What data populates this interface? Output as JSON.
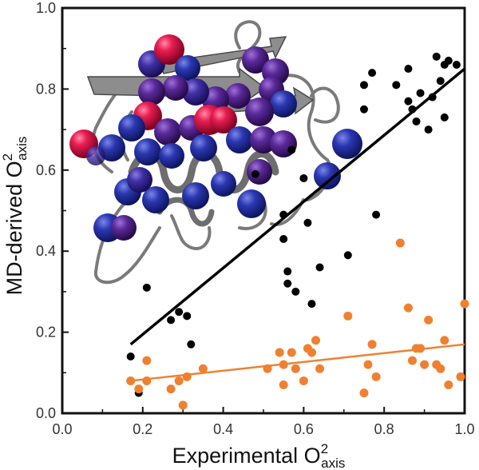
{
  "chart_data": {
    "type": "scatter",
    "xlabel": {
      "main": "Experimental O",
      "sup": "2",
      "sub": "axis"
    },
    "ylabel": {
      "main": "MD-derived O",
      "sup": "2",
      "sub": "axis"
    },
    "xlim": [
      0,
      1.0
    ],
    "ylim": [
      0,
      1.0
    ],
    "x_ticks": [
      "0.0",
      "0.2",
      "0.4",
      "0.6",
      "0.8",
      "1.0"
    ],
    "y_ticks": [
      "0.0",
      "0.2",
      "0.4",
      "0.6",
      "0.8",
      "1.0"
    ],
    "grid": false,
    "series": [
      {
        "color": "#000000",
        "points": [
          [
            0.17,
            0.14
          ],
          [
            0.19,
            0.05
          ],
          [
            0.21,
            0.31
          ],
          [
            0.27,
            0.23
          ],
          [
            0.29,
            0.25
          ],
          [
            0.31,
            0.24
          ],
          [
            0.32,
            0.17
          ],
          [
            0.48,
            0.59
          ],
          [
            0.55,
            0.49
          ],
          [
            0.55,
            0.43
          ],
          [
            0.56,
            0.35
          ],
          [
            0.56,
            0.32
          ],
          [
            0.57,
            0.65
          ],
          [
            0.58,
            0.3
          ],
          [
            0.6,
            0.58
          ],
          [
            0.61,
            0.47
          ],
          [
            0.62,
            0.27
          ],
          [
            0.64,
            0.36
          ],
          [
            0.71,
            0.39
          ],
          [
            0.75,
            0.81
          ],
          [
            0.75,
            0.75
          ],
          [
            0.77,
            0.84
          ],
          [
            0.78,
            0.49
          ],
          [
            0.83,
            0.81
          ],
          [
            0.86,
            0.85
          ],
          [
            0.86,
            0.77
          ],
          [
            0.87,
            0.75
          ],
          [
            0.88,
            0.72
          ],
          [
            0.89,
            0.79
          ],
          [
            0.91,
            0.7
          ],
          [
            0.92,
            0.78
          ],
          [
            0.93,
            0.88
          ],
          [
            0.94,
            0.82
          ],
          [
            0.95,
            0.86
          ],
          [
            0.95,
            0.73
          ],
          [
            0.96,
            0.87
          ],
          [
            0.98,
            0.86
          ]
        ],
        "fit": [
          [
            0.17,
            0.17
          ],
          [
            1.0,
            0.85
          ]
        ]
      },
      {
        "color": "#f08030",
        "points": [
          [
            0.17,
            0.08
          ],
          [
            0.19,
            0.06
          ],
          [
            0.21,
            0.08
          ],
          [
            0.21,
            0.13
          ],
          [
            0.27,
            0.06
          ],
          [
            0.29,
            0.08
          ],
          [
            0.3,
            0.02
          ],
          [
            0.31,
            0.09
          ],
          [
            0.35,
            0.11
          ],
          [
            0.51,
            0.11
          ],
          [
            0.54,
            0.15
          ],
          [
            0.55,
            0.12
          ],
          [
            0.55,
            0.07
          ],
          [
            0.57,
            0.15
          ],
          [
            0.58,
            0.11
          ],
          [
            0.6,
            0.08
          ],
          [
            0.61,
            0.16
          ],
          [
            0.62,
            0.15
          ],
          [
            0.63,
            0.18
          ],
          [
            0.64,
            0.11
          ],
          [
            0.71,
            0.24
          ],
          [
            0.75,
            0.05
          ],
          [
            0.76,
            0.12
          ],
          [
            0.77,
            0.17
          ],
          [
            0.78,
            0.09
          ],
          [
            0.84,
            0.42
          ],
          [
            0.86,
            0.26
          ],
          [
            0.87,
            0.13
          ],
          [
            0.88,
            0.16
          ],
          [
            0.89,
            0.16
          ],
          [
            0.9,
            0.12
          ],
          [
            0.91,
            0.23
          ],
          [
            0.93,
            0.12
          ],
          [
            0.94,
            0.11
          ],
          [
            0.95,
            0.18
          ],
          [
            0.96,
            0.07
          ],
          [
            0.99,
            0.09
          ],
          [
            1.0,
            0.27
          ]
        ],
        "fit": [
          [
            0.17,
            0.08
          ],
          [
            1.0,
            0.17
          ]
        ]
      }
    ]
  },
  "inset": {
    "sphere_colors": {
      "red": "#d0103a",
      "purple": "#5a1e8a",
      "blue": "#23309a",
      "gray": "#8a8a8a"
    }
  }
}
